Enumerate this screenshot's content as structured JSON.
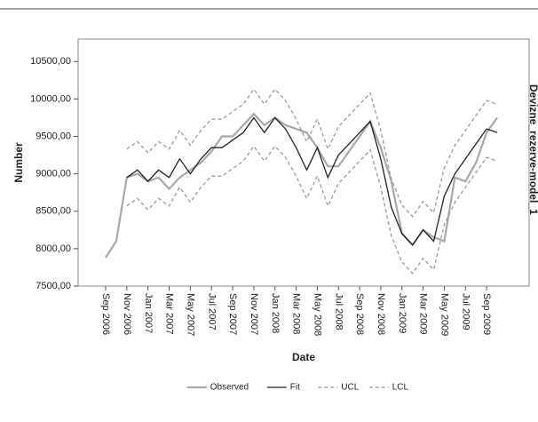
{
  "chart_data": {
    "type": "line",
    "y_label": "Number",
    "x_label": "Date",
    "right_label": "Devizne_rezerve-model_1",
    "categories": [
      "Sep 2006",
      null,
      "Nov 2006",
      null,
      "Jan 2007",
      null,
      "Mar 2007",
      null,
      "May 2007",
      null,
      "Jul 2007",
      null,
      "Sep 2007",
      null,
      "Nov 2007",
      null,
      "Jan 2008",
      null,
      "Mar 2008",
      null,
      "May 2008",
      null,
      "Jul 2008",
      null,
      "Sep 2008",
      null,
      "Nov 2008",
      null,
      "Jan 2009",
      null,
      "Mar 2009",
      null,
      "May 2009",
      null,
      "Jul 2009",
      null,
      "Sep 2009",
      null
    ],
    "series": [
      {
        "name": "Observed",
        "color": "#a8a8a8",
        "style": "solid",
        "values": [
          7880,
          8100,
          8950,
          9000,
          8900,
          8950,
          8800,
          8950,
          9050,
          9150,
          9300,
          9500,
          9500,
          9650,
          9800,
          9650,
          9750,
          9650,
          9600,
          9550,
          9350,
          9100,
          9100,
          9300,
          9500,
          9700,
          9350,
          8900,
          8200,
          8050,
          8250,
          8150,
          8100,
          8950,
          8900,
          9150,
          9550,
          9750
        ]
      },
      {
        "name": "Fit",
        "color": "#222222",
        "style": "solid",
        "values": [
          null,
          null,
          8950,
          9050,
          8900,
          9050,
          8950,
          9200,
          9000,
          9200,
          9350,
          9350,
          9450,
          9550,
          9750,
          9550,
          9750,
          9600,
          9350,
          9050,
          9350,
          8950,
          9250,
          9400,
          9550,
          9700,
          9200,
          8550,
          8200,
          8050,
          8250,
          8100,
          8700,
          9000,
          9200,
          9400,
          9600,
          9550
        ]
      },
      {
        "name": "UCL",
        "color": "#9a9a9a",
        "style": "dashed",
        "values": [
          null,
          null,
          9330,
          9430,
          9280,
          9430,
          9330,
          9580,
          9380,
          9580,
          9730,
          9730,
          9830,
          9930,
          10130,
          9930,
          10130,
          9980,
          9730,
          9430,
          9730,
          9330,
          9630,
          9780,
          9930,
          10080,
          9580,
          8930,
          8580,
          8430,
          8630,
          8480,
          9080,
          9380,
          9580,
          9780,
          9980,
          9930
        ]
      },
      {
        "name": "LCL",
        "color": "#9a9a9a",
        "style": "dashed",
        "values": [
          null,
          null,
          8570,
          8670,
          8520,
          8670,
          8570,
          8820,
          8620,
          8820,
          8970,
          8970,
          9070,
          9170,
          9370,
          9170,
          9370,
          9220,
          8970,
          8670,
          8970,
          8570,
          8870,
          9020,
          9170,
          9320,
          8820,
          8170,
          7820,
          7670,
          7870,
          7720,
          8320,
          8620,
          8820,
          9020,
          9220,
          9170
        ]
      }
    ],
    "ylim": [
      7500,
      10800
    ],
    "yticks": [
      {
        "value": 7500,
        "label": "7500,00"
      },
      {
        "value": 8000,
        "label": "8000,00"
      },
      {
        "value": 8500,
        "label": "8500,00"
      },
      {
        "value": 9000,
        "label": "9000,00"
      },
      {
        "value": 9500,
        "label": "9500,00"
      },
      {
        "value": 10000,
        "label": "10000,00"
      },
      {
        "value": 10500,
        "label": "10500,00"
      }
    ],
    "grid": false
  }
}
